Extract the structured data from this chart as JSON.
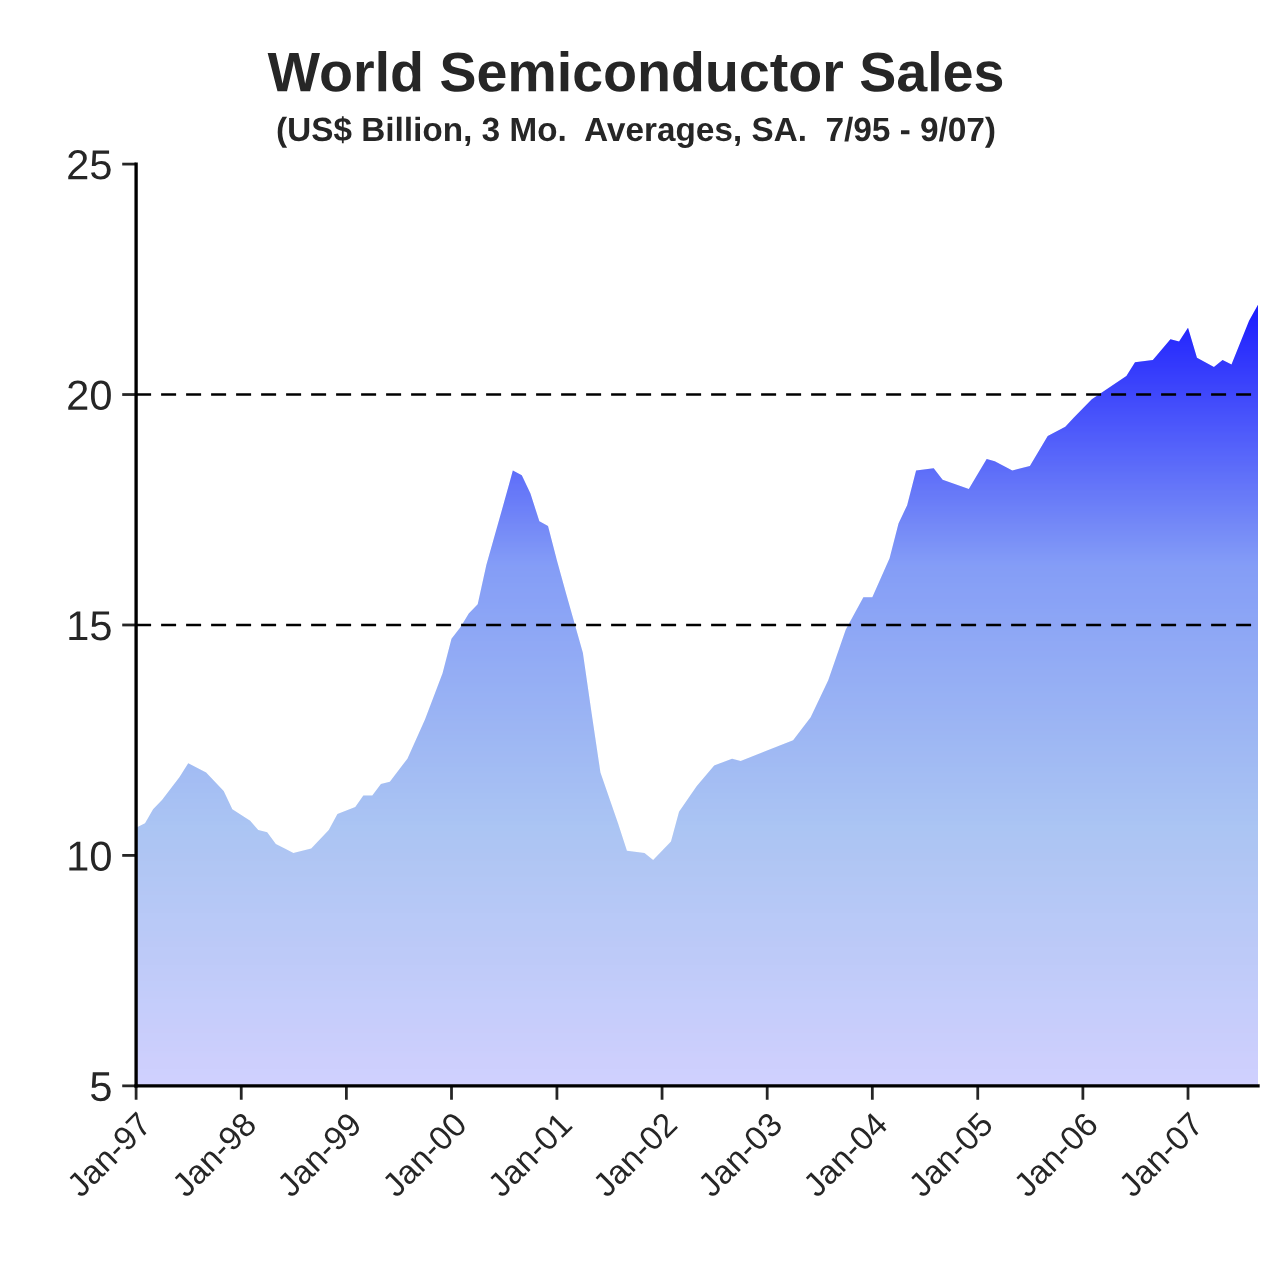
{
  "chart_data": {
    "type": "area",
    "title": "World Semiconductor Sales",
    "subtitle": "(US$ Billion, 3 Mo.  Averages, SA.  7/95 - 9/07)",
    "x": [
      "1997-01",
      "1997-02",
      "1997-03",
      "1997-04",
      "1997-06",
      "1997-07",
      "1997-09",
      "1997-11",
      "1997-12",
      "1998-02",
      "1998-03",
      "1998-04",
      "1998-05",
      "1998-06",
      "1998-07",
      "1998-09",
      "1998-11",
      "1998-12",
      "1999-02",
      "1999-03",
      "1999-04",
      "1999-05",
      "1999-06",
      "1999-08",
      "1999-10",
      "1999-12",
      "2000-01",
      "2000-02",
      "2000-03",
      "2000-04",
      "2000-05",
      "2000-07",
      "2000-08",
      "2000-09",
      "2000-10",
      "2000-11",
      "2000-12",
      "2001-01",
      "2001-02",
      "2001-04",
      "2001-05",
      "2001-06",
      "2001-08",
      "2001-09",
      "2001-11",
      "2001-12",
      "2002-02",
      "2002-03",
      "2002-05",
      "2002-07",
      "2002-09",
      "2002-10",
      "2003-04",
      "2003-06",
      "2003-08",
      "2003-10",
      "2003-12",
      "2004-01",
      "2004-03",
      "2004-04",
      "2004-05",
      "2004-06",
      "2004-08",
      "2004-09",
      "2004-12",
      "2005-02",
      "2005-03",
      "2005-05",
      "2005-07",
      "2005-09",
      "2005-11",
      "2005-12",
      "2006-02",
      "2006-06",
      "2006-07",
      "2006-09",
      "2006-11",
      "2006-12",
      "2007-01",
      "2007-02",
      "2007-04",
      "2007-05",
      "2007-06",
      "2007-08",
      "2007-09"
    ],
    "series": [
      {
        "color": "#1a1aff",
        "values": [
          10.6,
          10.7,
          11.0,
          11.2,
          11.7,
          12.0,
          11.8,
          11.4,
          11.0,
          10.75,
          10.55,
          10.5,
          10.25,
          10.15,
          10.05,
          10.15,
          10.55,
          10.9,
          11.05,
          11.3,
          11.3,
          11.55,
          11.6,
          12.1,
          12.95,
          13.95,
          14.7,
          14.95,
          15.25,
          15.45,
          16.3,
          17.65,
          18.35,
          18.25,
          17.85,
          17.25,
          17.15,
          16.4,
          15.7,
          14.4,
          13.1,
          11.8,
          10.7,
          10.1,
          10.05,
          9.9,
          10.3,
          10.95,
          11.5,
          11.95,
          12.1,
          12.05,
          12.5,
          13.0,
          13.8,
          14.9,
          15.6,
          15.6,
          16.45,
          17.2,
          17.6,
          18.35,
          18.4,
          18.15,
          17.95,
          18.6,
          18.55,
          18.35,
          18.45,
          19.1,
          19.3,
          19.5,
          19.9,
          20.4,
          20.7,
          20.75,
          21.2,
          21.15,
          21.45,
          20.8,
          20.6,
          20.75,
          20.65,
          21.6,
          21.95
        ]
      }
    ],
    "xlim": [
      "1997-01",
      "2007-09"
    ],
    "xticks": [
      {
        "value": "1997-01",
        "label": "Jan-97"
      },
      {
        "value": "1998-01",
        "label": "Jan-98"
      },
      {
        "value": "1999-01",
        "label": "Jan-99"
      },
      {
        "value": "2000-01",
        "label": "Jan-00"
      },
      {
        "value": "2001-01",
        "label": "Jan-01"
      },
      {
        "value": "2002-01",
        "label": "Jan-02"
      },
      {
        "value": "2003-01",
        "label": "Jan-03"
      },
      {
        "value": "2004-01",
        "label": "Jan-04"
      },
      {
        "value": "2005-01",
        "label": "Jan-05"
      },
      {
        "value": "2006-01",
        "label": "Jan-06"
      },
      {
        "value": "2007-01",
        "label": "Jan-07"
      }
    ],
    "ylim": [
      5,
      25
    ],
    "yticks": [
      5,
      10,
      15,
      20,
      25
    ],
    "ref_lines": [
      {
        "axis": "y",
        "value": 15,
        "line_style": "dashed",
        "color": "#000000"
      },
      {
        "axis": "y",
        "value": 20,
        "line_style": "dashed",
        "color": "#000000"
      }
    ],
    "grid": false,
    "legend": false
  }
}
